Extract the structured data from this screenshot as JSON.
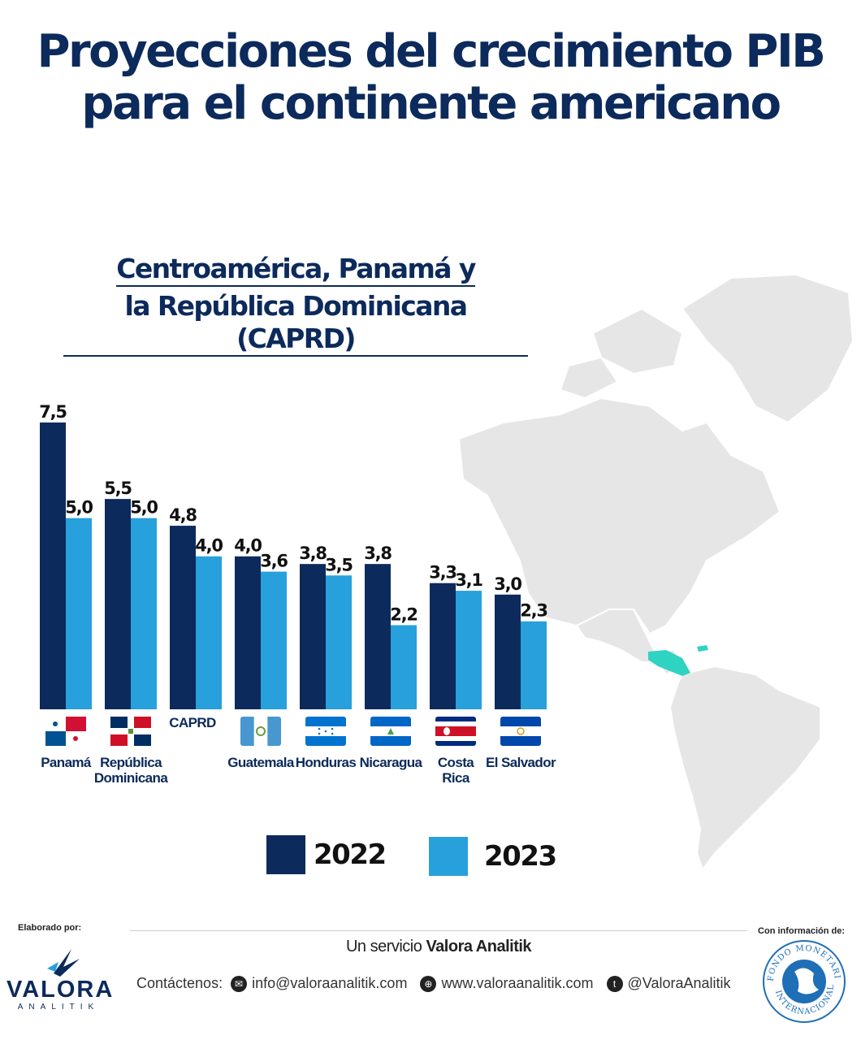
{
  "title_line1": "Proyecciones del crecimiento PIB",
  "title_line2": "para el continente americano",
  "subtitle_line1": "Centroamérica, Panamá y",
  "subtitle_line2": "la República Dominicana (CAPRD)",
  "colors": {
    "series_2022": "#0c2a5b",
    "series_2023": "#27a0dc",
    "accent": "#0c2a5b",
    "map_base": "#e8e8e8",
    "map_highlight": "#2fd3c2"
  },
  "chart_data": {
    "type": "bar",
    "title": "Centroamérica, Panamá y la República Dominicana (CAPRD)",
    "xlabel": "",
    "ylabel": "",
    "ylim": [
      0,
      7.5
    ],
    "categories": [
      "Panamá",
      "República Dominicana",
      "CAPRD",
      "Guatemala",
      "Honduras",
      "Nicaragua",
      "Costa Rica",
      "El Salvador"
    ],
    "category_label_lines": [
      [
        "Panamá"
      ],
      [
        "República",
        "Dominicana"
      ],
      [
        "CAPRD"
      ],
      [
        "Guatemala"
      ],
      [
        "Honduras"
      ],
      [
        "Nicaragua"
      ],
      [
        "Costa",
        "Rica"
      ],
      [
        "El Salvador"
      ]
    ],
    "series": [
      {
        "name": "2022",
        "values": [
          7.5,
          5.5,
          4.8,
          4.0,
          3.8,
          3.8,
          3.3,
          3.0
        ],
        "labels": [
          "7,5",
          "5,5",
          "4,8",
          "4,0",
          "3,8",
          "3,8",
          "3,3",
          "3,0"
        ]
      },
      {
        "name": "2023",
        "values": [
          5.0,
          5.0,
          4.0,
          3.6,
          3.5,
          2.2,
          3.1,
          2.3
        ],
        "labels": [
          "5,0",
          "5,0",
          "4,0",
          "3,6",
          "3,5",
          "2,2",
          "3,1",
          "2,3"
        ]
      }
    ],
    "legend_position": "bottom",
    "grid": false,
    "flags": [
      "panama-flag-icon",
      "dominican-republic-flag-icon",
      "",
      "guatemala-flag-icon",
      "honduras-flag-icon",
      "nicaragua-flag-icon",
      "costa-rica-flag-icon",
      "el-salvador-flag-icon"
    ]
  },
  "legend": {
    "item_2022": "2022",
    "item_2023": "2023"
  },
  "footer": {
    "elaborado": "Elaborado por:",
    "con_informacion": "Con información de:",
    "service_prefix": "Un servicio ",
    "service_brand": "Valora Analitik",
    "contact_label": "Contáctenos:",
    "email": "info@valoraanalitik.com",
    "website": "www.valoraanalitik.com",
    "twitter": "@ValoraAnalitik",
    "logo_name": "VALORA",
    "logo_sub": "ANALITIK",
    "seal_top": "FONDO MONETARIO",
    "seal_bottom": "INTERNACIONAL"
  }
}
